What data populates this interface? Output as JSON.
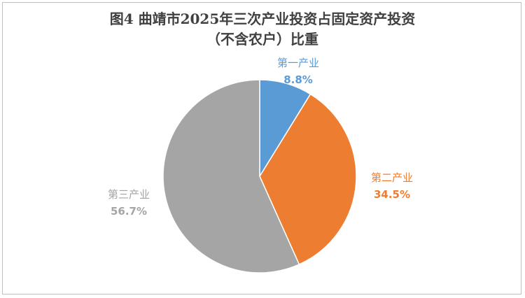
{
  "chart_data": {
    "type": "pie",
    "title": "图4  曲靖市2025年三次产业投资占固定资产投资",
    "subtitle": "（不含农户）比重",
    "slices": [
      {
        "label": "第一产业",
        "value": 8.8,
        "display": "8.8%",
        "color": "#5b9bd5"
      },
      {
        "label": "第二产业",
        "value": 34.5,
        "display": "34.5%",
        "color": "#ed7d31"
      },
      {
        "label": "第三产业",
        "value": 56.7,
        "display": "56.7%",
        "color": "#a5a5a5"
      }
    ]
  }
}
